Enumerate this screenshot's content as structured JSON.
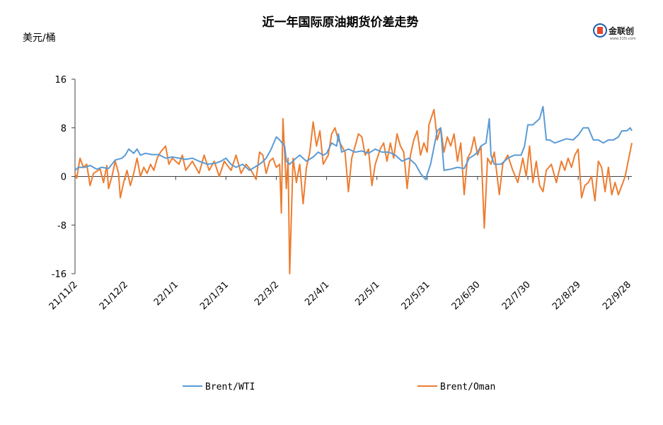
{
  "logo": {
    "text": "金联创",
    "subtext": "www.315i.com"
  },
  "chart_data": {
    "type": "line",
    "title": "近一年国际原油期货价差走势",
    "ylabel": "美元/桶",
    "ylim": [
      -16,
      16
    ],
    "yticks": [
      "16",
      "8",
      "0",
      "-8",
      "-16"
    ],
    "ytick_values": [
      16,
      8,
      0,
      -8,
      -16
    ],
    "x_range": [
      "2021-11-02",
      "2022-09-30"
    ],
    "x_tick_labels": [
      "21/11/2",
      "21/12/2",
      "22/1/1",
      "22/1/31",
      "22/3/2",
      "22/4/1",
      "22/5/1",
      "22/5/31",
      "22/6/30",
      "22/7/30",
      "22/8/29",
      "22/9/28"
    ],
    "x_tick_dates": [
      "2021-11-02",
      "2021-12-02",
      "2022-01-01",
      "2022-01-31",
      "2022-03-02",
      "2022-04-01",
      "2022-05-01",
      "2022-05-31",
      "2022-06-30",
      "2022-07-30",
      "2022-08-29",
      "2022-09-28"
    ],
    "grid": false,
    "legend_position": "bottom",
    "series": [
      {
        "name": "Brent/WTI",
        "color": "#5b9bd5",
        "points": [
          [
            "2021-11-02",
            1.0
          ],
          [
            "2021-11-04",
            1.5
          ],
          [
            "2021-11-08",
            1.5
          ],
          [
            "2021-11-11",
            1.8
          ],
          [
            "2021-11-15",
            1.2
          ],
          [
            "2021-11-18",
            1.5
          ],
          [
            "2021-11-22",
            1.3
          ],
          [
            "2021-11-26",
            2.7
          ],
          [
            "2021-11-30",
            3.0
          ],
          [
            "2021-12-02",
            3.5
          ],
          [
            "2021-12-04",
            4.5
          ],
          [
            "2021-12-07",
            3.8
          ],
          [
            "2021-12-09",
            4.5
          ],
          [
            "2021-12-11",
            3.5
          ],
          [
            "2021-12-14",
            3.8
          ],
          [
            "2021-12-18",
            3.6
          ],
          [
            "2021-12-22",
            3.6
          ],
          [
            "2021-12-26",
            3.0
          ],
          [
            "2021-12-30",
            3.2
          ],
          [
            "2022-01-03",
            3.0
          ],
          [
            "2022-01-07",
            2.8
          ],
          [
            "2022-01-11",
            3.0
          ],
          [
            "2022-01-15",
            2.5
          ],
          [
            "2022-01-20",
            2.0
          ],
          [
            "2022-01-25",
            2.2
          ],
          [
            "2022-01-28",
            2.5
          ],
          [
            "2022-01-31",
            3.0
          ],
          [
            "2022-02-03",
            2.0
          ],
          [
            "2022-02-06",
            1.5
          ],
          [
            "2022-02-10",
            2.0
          ],
          [
            "2022-02-14",
            1.0
          ],
          [
            "2022-02-17",
            1.5
          ],
          [
            "2022-02-21",
            2.2
          ],
          [
            "2022-02-24",
            3.0
          ],
          [
            "2022-02-27",
            4.5
          ],
          [
            "2022-03-02",
            6.5
          ],
          [
            "2022-03-04",
            6.0
          ],
          [
            "2022-03-07",
            5.0
          ],
          [
            "2022-03-08",
            2.5
          ],
          [
            "2022-03-10",
            2.0
          ],
          [
            "2022-03-13",
            2.8
          ],
          [
            "2022-03-16",
            3.5
          ],
          [
            "2022-03-20",
            2.5
          ],
          [
            "2022-03-24",
            3.2
          ],
          [
            "2022-03-27",
            4.0
          ],
          [
            "2022-03-30",
            3.5
          ],
          [
            "2022-04-01",
            3.8
          ],
          [
            "2022-04-04",
            5.5
          ],
          [
            "2022-04-07",
            5.0
          ],
          [
            "2022-04-08",
            7.0
          ],
          [
            "2022-04-10",
            4.0
          ],
          [
            "2022-04-14",
            4.5
          ],
          [
            "2022-04-18",
            4.0
          ],
          [
            "2022-04-22",
            4.2
          ],
          [
            "2022-04-26",
            3.8
          ],
          [
            "2022-04-30",
            4.5
          ],
          [
            "2022-05-04",
            4.0
          ],
          [
            "2022-05-08",
            4.0
          ],
          [
            "2022-05-12",
            3.5
          ],
          [
            "2022-05-16",
            2.5
          ],
          [
            "2022-05-20",
            3.0
          ],
          [
            "2022-05-24",
            2.0
          ],
          [
            "2022-05-27",
            0.5
          ],
          [
            "2022-05-30",
            -0.5
          ],
          [
            "2022-06-02",
            2.0
          ],
          [
            "2022-06-06",
            7.5
          ],
          [
            "2022-06-08",
            8.0
          ],
          [
            "2022-06-10",
            1.0
          ],
          [
            "2022-06-14",
            1.2
          ],
          [
            "2022-06-18",
            1.5
          ],
          [
            "2022-06-22",
            1.3
          ],
          [
            "2022-06-25",
            3.0
          ],
          [
            "2022-06-28",
            3.5
          ],
          [
            "2022-06-30",
            4.0
          ],
          [
            "2022-07-02",
            5.0
          ],
          [
            "2022-07-05",
            5.5
          ],
          [
            "2022-07-07",
            9.5
          ],
          [
            "2022-07-08",
            3.5
          ],
          [
            "2022-07-10",
            2.0
          ],
          [
            "2022-07-14",
            2.0
          ],
          [
            "2022-07-18",
            3.0
          ],
          [
            "2022-07-22",
            3.5
          ],
          [
            "2022-07-26",
            3.5
          ],
          [
            "2022-07-28",
            5.0
          ],
          [
            "2022-07-30",
            8.5
          ],
          [
            "2022-08-02",
            8.5
          ],
          [
            "2022-08-06",
            9.5
          ],
          [
            "2022-08-08",
            11.5
          ],
          [
            "2022-08-10",
            6.0
          ],
          [
            "2022-08-12",
            6.0
          ],
          [
            "2022-08-15",
            5.5
          ],
          [
            "2022-08-18",
            5.8
          ],
          [
            "2022-08-22",
            6.2
          ],
          [
            "2022-08-26",
            6.0
          ],
          [
            "2022-08-29",
            6.8
          ],
          [
            "2022-09-01",
            8.0
          ],
          [
            "2022-09-04",
            8.0
          ],
          [
            "2022-09-07",
            6.0
          ],
          [
            "2022-09-10",
            6.0
          ],
          [
            "2022-09-13",
            5.5
          ],
          [
            "2022-09-16",
            6.0
          ],
          [
            "2022-09-19",
            6.0
          ],
          [
            "2022-09-22",
            6.5
          ],
          [
            "2022-09-24",
            7.5
          ],
          [
            "2022-09-27",
            7.5
          ],
          [
            "2022-09-29",
            8.0
          ],
          [
            "2022-09-30",
            7.5
          ]
        ]
      },
      {
        "name": "Brent/Oman",
        "color": "#ed7d31",
        "points": [
          [
            "2021-11-02",
            0.5
          ],
          [
            "2021-11-03",
            -0.3
          ],
          [
            "2021-11-05",
            3.0
          ],
          [
            "2021-11-07",
            1.5
          ],
          [
            "2021-11-09",
            2.0
          ],
          [
            "2021-11-11",
            -1.5
          ],
          [
            "2021-11-13",
            0.5
          ],
          [
            "2021-11-17",
            1.2
          ],
          [
            "2021-11-19",
            -1.0
          ],
          [
            "2021-11-21",
            1.8
          ],
          [
            "2021-11-22",
            -2.0
          ],
          [
            "2021-11-24",
            0.0
          ],
          [
            "2021-11-26",
            2.5
          ],
          [
            "2021-11-28",
            0.5
          ],
          [
            "2021-11-29",
            -3.5
          ],
          [
            "2021-12-01",
            -1.0
          ],
          [
            "2021-12-03",
            1.0
          ],
          [
            "2021-12-05",
            -1.5
          ],
          [
            "2021-12-07",
            0.5
          ],
          [
            "2021-12-09",
            3.0
          ],
          [
            "2021-12-11",
            0.0
          ],
          [
            "2021-12-13",
            1.5
          ],
          [
            "2021-12-15",
            0.5
          ],
          [
            "2021-12-17",
            2.0
          ],
          [
            "2021-12-19",
            1.0
          ],
          [
            "2021-12-21",
            3.0
          ],
          [
            "2021-12-23",
            4.0
          ],
          [
            "2021-12-26",
            5.0
          ],
          [
            "2021-12-28",
            2.0
          ],
          [
            "2021-12-30",
            3.0
          ],
          [
            "2022-01-03",
            2.0
          ],
          [
            "2022-01-05",
            3.5
          ],
          [
            "2022-01-07",
            1.0
          ],
          [
            "2022-01-11",
            2.5
          ],
          [
            "2022-01-15",
            0.5
          ],
          [
            "2022-01-18",
            3.5
          ],
          [
            "2022-01-21",
            1.0
          ],
          [
            "2022-01-24",
            2.5
          ],
          [
            "2022-01-27",
            0.0
          ],
          [
            "2022-01-30",
            2.5
          ],
          [
            "2022-02-03",
            1.0
          ],
          [
            "2022-02-06",
            3.5
          ],
          [
            "2022-02-09",
            0.5
          ],
          [
            "2022-02-12",
            2.0
          ],
          [
            "2022-02-15",
            1.0
          ],
          [
            "2022-02-18",
            -0.5
          ],
          [
            "2022-02-20",
            4.0
          ],
          [
            "2022-02-22",
            3.5
          ],
          [
            "2022-02-24",
            0.5
          ],
          [
            "2022-02-26",
            2.5
          ],
          [
            "2022-02-28",
            3.0
          ],
          [
            "2022-03-02",
            1.5
          ],
          [
            "2022-03-04",
            2.0
          ],
          [
            "2022-03-05",
            -6.0
          ],
          [
            "2022-03-06",
            9.5
          ],
          [
            "2022-03-08",
            -2.0
          ],
          [
            "2022-03-09",
            3.0
          ],
          [
            "2022-03-10",
            -16.0
          ],
          [
            "2022-03-12",
            3.0
          ],
          [
            "2022-03-14",
            -1.0
          ],
          [
            "2022-03-16",
            2.0
          ],
          [
            "2022-03-18",
            -4.5
          ],
          [
            "2022-03-20",
            1.5
          ],
          [
            "2022-03-22",
            4.0
          ],
          [
            "2022-03-24",
            9.0
          ],
          [
            "2022-03-26",
            5.0
          ],
          [
            "2022-03-28",
            7.5
          ],
          [
            "2022-03-30",
            2.0
          ],
          [
            "2022-04-02",
            3.5
          ],
          [
            "2022-04-04",
            7.0
          ],
          [
            "2022-04-06",
            8.0
          ],
          [
            "2022-04-08",
            6.0
          ],
          [
            "2022-04-12",
            4.0
          ],
          [
            "2022-04-14",
            -2.5
          ],
          [
            "2022-04-16",
            3.0
          ],
          [
            "2022-04-18",
            5.0
          ],
          [
            "2022-04-20",
            7.0
          ],
          [
            "2022-04-22",
            6.5
          ],
          [
            "2022-04-24",
            3.5
          ],
          [
            "2022-04-26",
            4.5
          ],
          [
            "2022-04-28",
            -1.5
          ],
          [
            "2022-04-30",
            2.0
          ],
          [
            "2022-05-03",
            4.5
          ],
          [
            "2022-05-05",
            5.5
          ],
          [
            "2022-05-07",
            2.5
          ],
          [
            "2022-05-09",
            5.5
          ],
          [
            "2022-05-11",
            3.0
          ],
          [
            "2022-05-13",
            7.0
          ],
          [
            "2022-05-15",
            5.0
          ],
          [
            "2022-05-17",
            4.0
          ],
          [
            "2022-05-19",
            -2.0
          ],
          [
            "2022-05-21",
            3.5
          ],
          [
            "2022-05-23",
            6.0
          ],
          [
            "2022-05-25",
            7.5
          ],
          [
            "2022-05-27",
            3.5
          ],
          [
            "2022-05-29",
            5.5
          ],
          [
            "2022-05-31",
            4.0
          ],
          [
            "2022-06-01",
            8.5
          ],
          [
            "2022-06-04",
            11.0
          ],
          [
            "2022-06-06",
            6.0
          ],
          [
            "2022-06-08",
            8.0
          ],
          [
            "2022-06-10",
            4.0
          ],
          [
            "2022-06-12",
            6.5
          ],
          [
            "2022-06-14",
            5.0
          ],
          [
            "2022-06-16",
            7.0
          ],
          [
            "2022-06-18",
            2.5
          ],
          [
            "2022-06-20",
            5.5
          ],
          [
            "2022-06-22",
            -3.0
          ],
          [
            "2022-06-24",
            3.0
          ],
          [
            "2022-06-26",
            4.0
          ],
          [
            "2022-06-28",
            6.5
          ],
          [
            "2022-06-30",
            3.5
          ],
          [
            "2022-07-02",
            5.0
          ],
          [
            "2022-07-04",
            -8.5
          ],
          [
            "2022-07-06",
            3.0
          ],
          [
            "2022-07-08",
            2.0
          ],
          [
            "2022-07-10",
            4.0
          ],
          [
            "2022-07-13",
            -3.0
          ],
          [
            "2022-07-15",
            2.0
          ],
          [
            "2022-07-18",
            3.5
          ],
          [
            "2022-07-21",
            1.0
          ],
          [
            "2022-07-24",
            -1.0
          ],
          [
            "2022-07-27",
            3.0
          ],
          [
            "2022-07-29",
            0.0
          ],
          [
            "2022-07-31",
            5.0
          ],
          [
            "2022-08-02",
            -1.0
          ],
          [
            "2022-08-04",
            2.5
          ],
          [
            "2022-08-06",
            -1.5
          ],
          [
            "2022-08-08",
            -2.5
          ],
          [
            "2022-08-10",
            1.0
          ],
          [
            "2022-08-13",
            2.0
          ],
          [
            "2022-08-16",
            -1.0
          ],
          [
            "2022-08-19",
            2.5
          ],
          [
            "2022-08-21",
            1.0
          ],
          [
            "2022-08-23",
            3.0
          ],
          [
            "2022-08-25",
            1.5
          ],
          [
            "2022-08-27",
            3.5
          ],
          [
            "2022-08-29",
            4.5
          ],
          [
            "2022-08-31",
            -3.5
          ],
          [
            "2022-09-02",
            -1.5
          ],
          [
            "2022-09-04",
            -1.0
          ],
          [
            "2022-09-06",
            0.0
          ],
          [
            "2022-09-08",
            -4.0
          ],
          [
            "2022-09-10",
            2.5
          ],
          [
            "2022-09-12",
            1.5
          ],
          [
            "2022-09-14",
            -2.5
          ],
          [
            "2022-09-16",
            1.5
          ],
          [
            "2022-09-18",
            -3.0
          ],
          [
            "2022-09-20",
            -1.0
          ],
          [
            "2022-09-22",
            -3.0
          ],
          [
            "2022-09-24",
            -1.5
          ],
          [
            "2022-09-26",
            0.0
          ],
          [
            "2022-09-30",
            5.5
          ]
        ]
      }
    ]
  }
}
